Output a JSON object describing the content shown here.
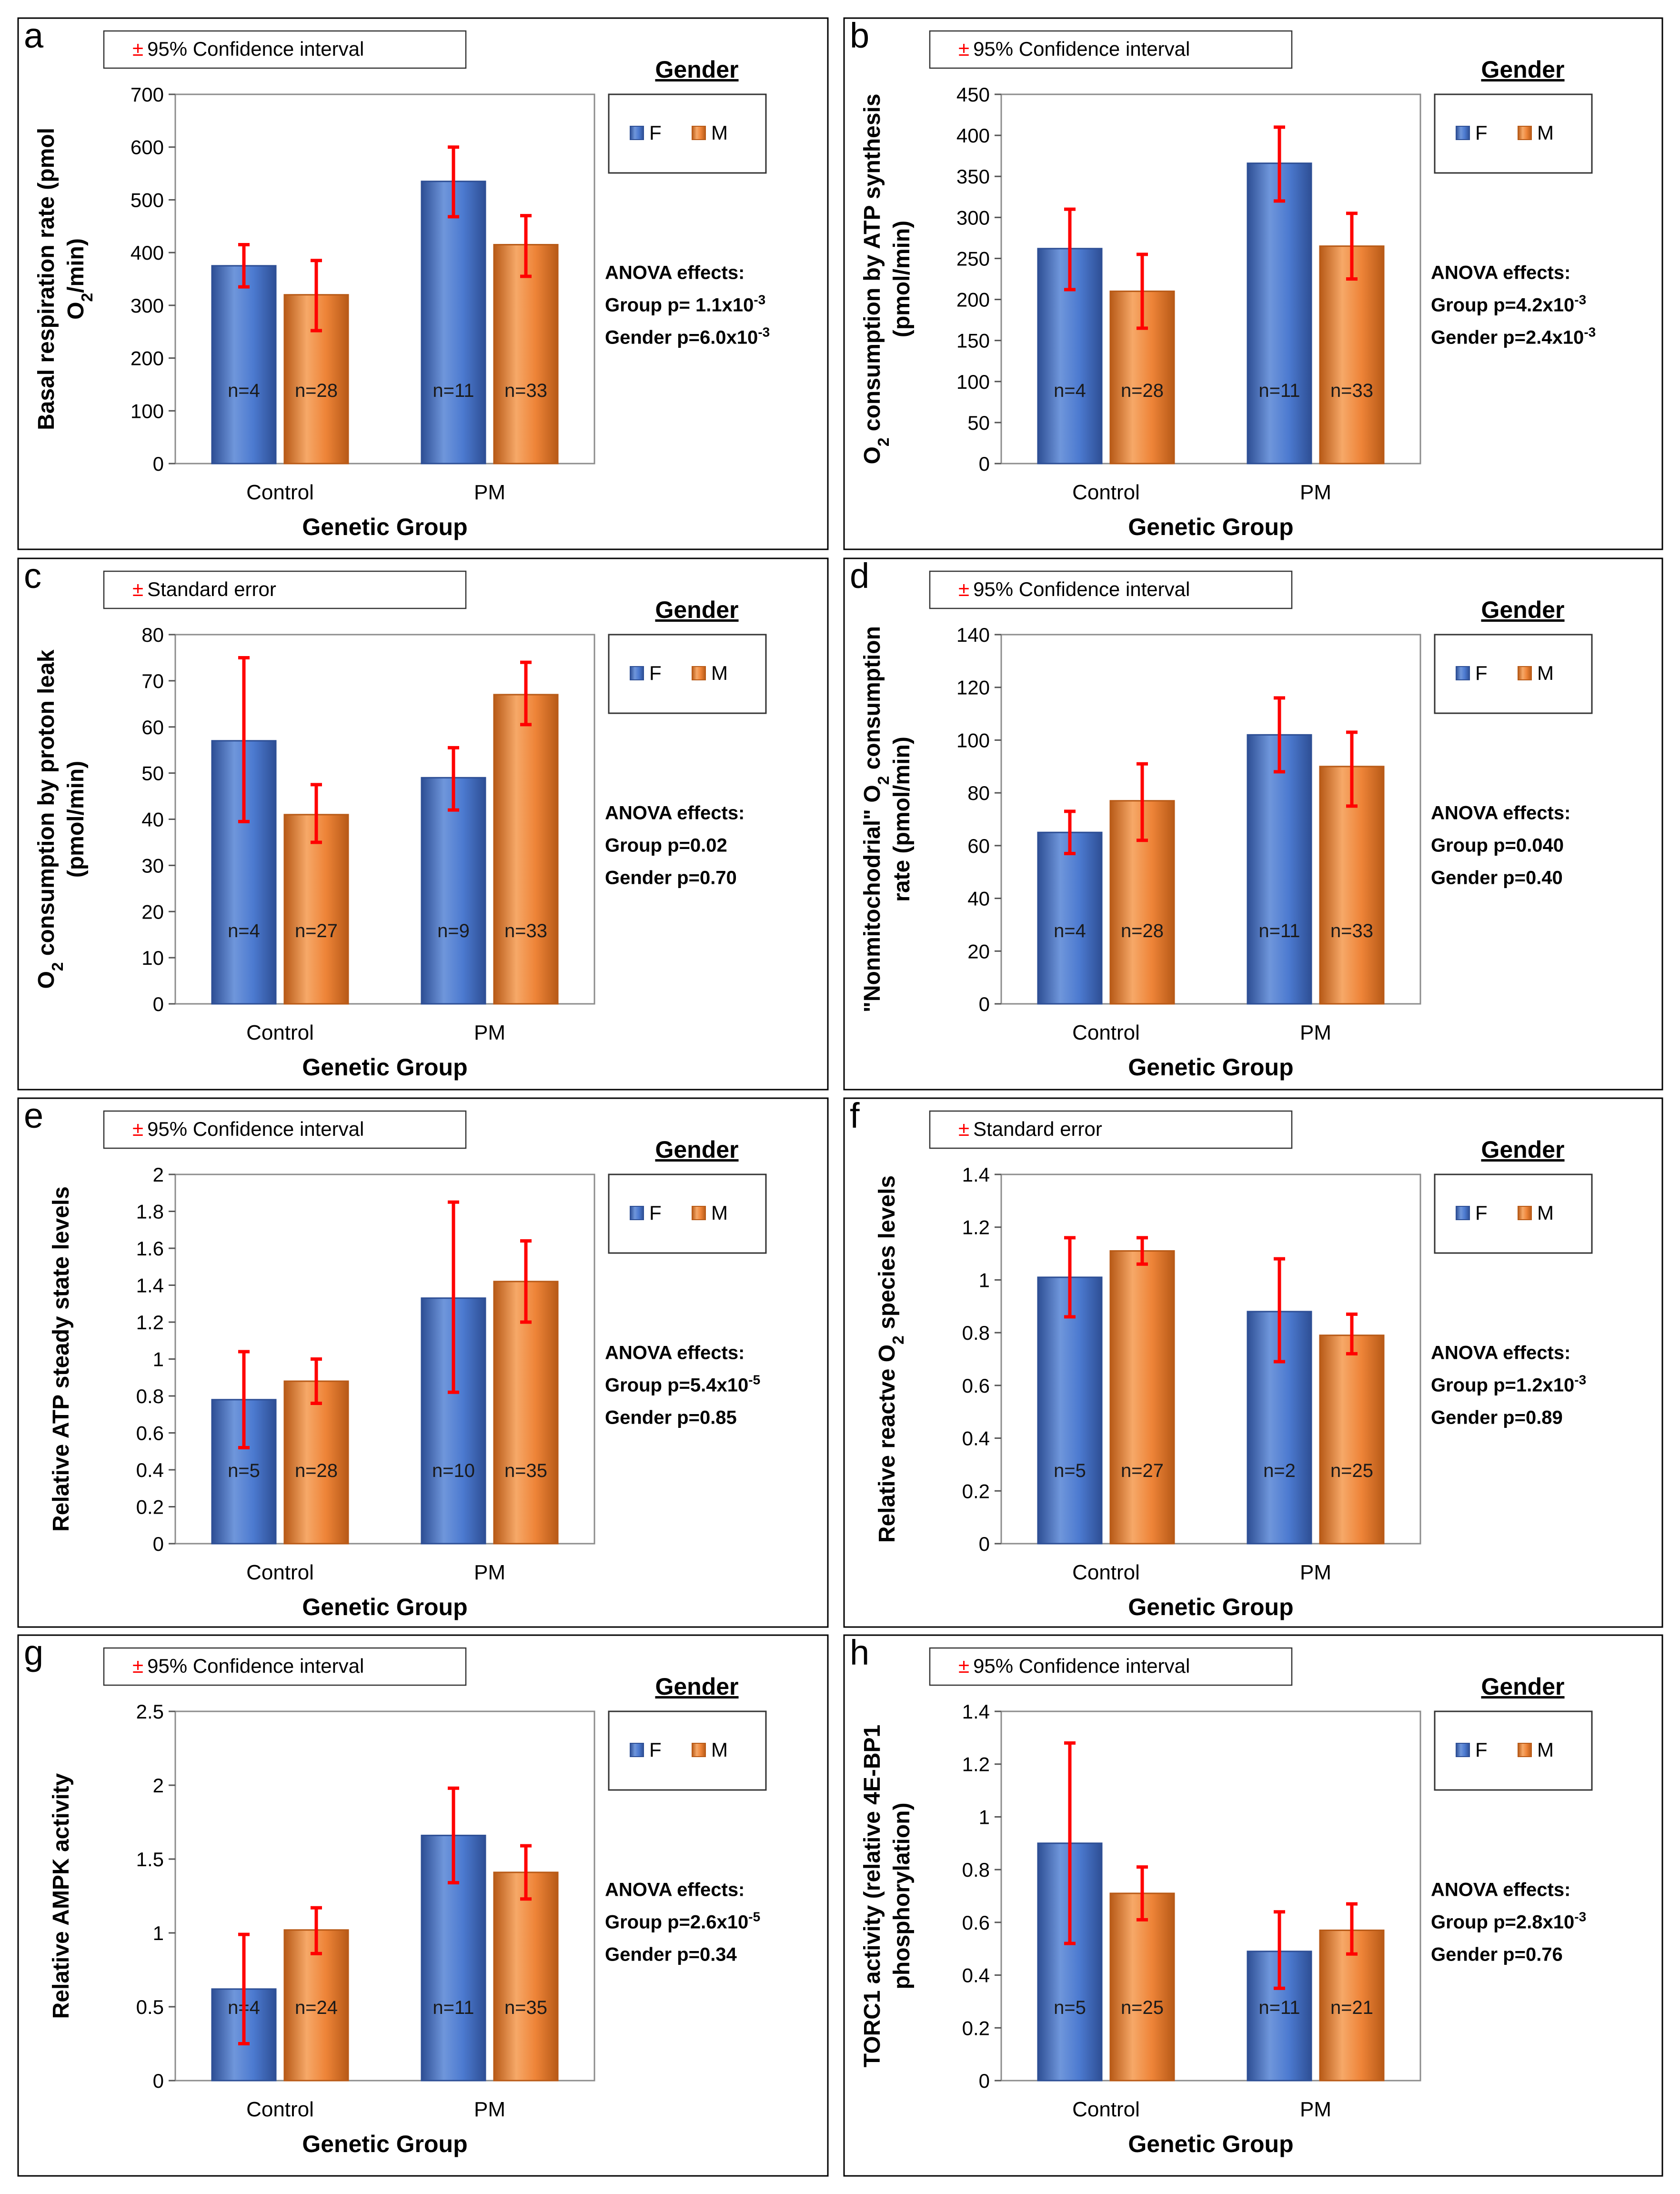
{
  "colors": {
    "female": "#4472C4",
    "female_light": "#7EA1E0",
    "female_dark": "#2E4F95",
    "male": "#ED7D31",
    "male_light": "#F7B27A",
    "male_dark": "#B85A17",
    "error_bar": "#FF0000",
    "pm_symbol": "#FF0000",
    "frame": "#000000",
    "plot_border": "#8C8C8C"
  },
  "legend_labels": {
    "title": "Gender",
    "female": "F",
    "male": "M"
  },
  "anova_title": "ANOVA effects:",
  "chart_data": [
    {
      "panel": "a",
      "type": "bar",
      "ci_label": "95% Confidence interval",
      "pm_symbol": "±",
      "ylabel_lines": [
        "Basal respiration rate (pmol",
        "O2/min)"
      ],
      "xlabel": "Genetic Group",
      "categories": [
        "Control",
        "PM"
      ],
      "ylim": [
        0,
        700
      ],
      "yticks": [
        0,
        100,
        200,
        300,
        400,
        500,
        600,
        700
      ],
      "series": [
        {
          "name": "F",
          "values": [
            375,
            535
          ],
          "err_low": [
            335,
            468
          ],
          "err_high": [
            415,
            600
          ],
          "n_labels": [
            "n=4",
            "n=11"
          ]
        },
        {
          "name": "M",
          "values": [
            320,
            415
          ],
          "err_low": [
            252,
            355
          ],
          "err_high": [
            385,
            470
          ],
          "n_labels": [
            "n=28",
            "n=33"
          ]
        }
      ],
      "anova": [
        "Group p= 1.1x10-3",
        "Gender p=6.0x10-3"
      ]
    },
    {
      "panel": "b",
      "type": "bar",
      "ci_label": "95% Confidence interval",
      "pm_symbol": "±",
      "ylabel_lines": [
        "O2 consumption by ATP synthesis",
        "(pmol/min)"
      ],
      "xlabel": "Genetic Group",
      "categories": [
        "Control",
        "PM"
      ],
      "ylim": [
        0,
        450
      ],
      "yticks": [
        0,
        50,
        100,
        150,
        200,
        250,
        300,
        350,
        400,
        450
      ],
      "series": [
        {
          "name": "F",
          "values": [
            262,
            366
          ],
          "err_low": [
            212,
            320
          ],
          "err_high": [
            310,
            410
          ],
          "n_labels": [
            "n=4",
            "n=11"
          ]
        },
        {
          "name": "M",
          "values": [
            210,
            265
          ],
          "err_low": [
            165,
            225
          ],
          "err_high": [
            255,
            305
          ],
          "n_labels": [
            "n=28",
            "n=33"
          ]
        }
      ],
      "anova": [
        "Group p=4.2x10-3",
        "Gender p=2.4x10-3"
      ]
    },
    {
      "panel": "c",
      "type": "bar",
      "ci_label": "Standard error",
      "pm_symbol": "±",
      "ylabel_lines": [
        "O2 consumption by proton leak",
        "(pmol/min)"
      ],
      "xlabel": "Genetic Group",
      "categories": [
        "Control",
        "PM"
      ],
      "ylim": [
        0,
        80
      ],
      "yticks": [
        0,
        10,
        20,
        30,
        40,
        50,
        60,
        70,
        80
      ],
      "series": [
        {
          "name": "F",
          "values": [
            57,
            49
          ],
          "err_low": [
            39.5,
            42
          ],
          "err_high": [
            75,
            55.5
          ],
          "n_labels": [
            "n=4",
            "n=9"
          ]
        },
        {
          "name": "M",
          "values": [
            41,
            67
          ],
          "err_low": [
            35,
            60.5
          ],
          "err_high": [
            47.5,
            74
          ],
          "n_labels": [
            "n=27",
            "n=33"
          ]
        }
      ],
      "anova": [
        "Group p=0.02",
        "Gender p=0.70"
      ]
    },
    {
      "panel": "d",
      "type": "bar",
      "ci_label": "95% Confidence interval",
      "pm_symbol": "±",
      "ylabel_lines": [
        "\"Nonmitochodrial\" O2 consumption",
        "rate (pmol/min)"
      ],
      "xlabel": "Genetic Group",
      "categories": [
        "Control",
        "PM"
      ],
      "ylim": [
        0,
        140
      ],
      "yticks": [
        0,
        20,
        40,
        60,
        80,
        100,
        120,
        140
      ],
      "series": [
        {
          "name": "F",
          "values": [
            65,
            102
          ],
          "err_low": [
            57,
            88
          ],
          "err_high": [
            73,
            116
          ],
          "n_labels": [
            "n=4",
            "n=11"
          ]
        },
        {
          "name": "M",
          "values": [
            77,
            90
          ],
          "err_low": [
            62,
            75
          ],
          "err_high": [
            91,
            103
          ],
          "n_labels": [
            "n=28",
            "n=33"
          ]
        }
      ],
      "anova": [
        "Group p=0.040",
        "Gender p=0.40"
      ]
    },
    {
      "panel": "e",
      "type": "bar",
      "ci_label": "95% Confidence interval",
      "pm_symbol": "±",
      "ylabel_lines": [
        "Relative ATP steady state levels"
      ],
      "xlabel": "Genetic Group",
      "categories": [
        "Control",
        "PM"
      ],
      "ylim": [
        0,
        2
      ],
      "yticks": [
        "0",
        "0.2",
        "0.4",
        "0.6",
        "0.8",
        "1",
        "1.2",
        "1.4",
        "1.6",
        "1.8",
        "2"
      ],
      "series": [
        {
          "name": "F",
          "values": [
            0.78,
            1.33
          ],
          "err_low": [
            0.52,
            0.82
          ],
          "err_high": [
            1.04,
            1.85
          ],
          "n_labels": [
            "n=5",
            "n=10"
          ]
        },
        {
          "name": "M",
          "values": [
            0.88,
            1.42
          ],
          "err_low": [
            0.76,
            1.2
          ],
          "err_high": [
            1.0,
            1.64
          ],
          "n_labels": [
            "n=28",
            "n=35"
          ]
        }
      ],
      "anova": [
        "Group p=5.4x10-5",
        "Gender p=0.85"
      ]
    },
    {
      "panel": "f",
      "type": "bar",
      "ci_label": "Standard error",
      "pm_symbol": "±",
      "ylabel_lines": [
        "Relative reactve O2 species levels"
      ],
      "xlabel": "Genetic Group",
      "categories": [
        "Control",
        "PM"
      ],
      "ylim": [
        0,
        1.4
      ],
      "yticks": [
        "0",
        "0.2",
        "0.4",
        "0.6",
        "0.8",
        "1",
        "1.2",
        "1.4"
      ],
      "series": [
        {
          "name": "F",
          "values": [
            1.01,
            0.88
          ],
          "err_low": [
            0.86,
            0.69
          ],
          "err_high": [
            1.16,
            1.08
          ],
          "n_labels": [
            "n=5",
            "n=2"
          ]
        },
        {
          "name": "M",
          "values": [
            1.11,
            0.79
          ],
          "err_low": [
            1.06,
            0.72
          ],
          "err_high": [
            1.16,
            0.87
          ],
          "n_labels": [
            "n=27",
            "n=25"
          ]
        }
      ],
      "anova": [
        "Group p=1.2x10-3",
        "Gender p=0.89"
      ]
    },
    {
      "panel": "g",
      "type": "bar",
      "ci_label": "95% Confidence interval",
      "pm_symbol": "±",
      "ylabel_lines": [
        "Relative AMPK activity"
      ],
      "xlabel": "Genetic Group",
      "categories": [
        "Control",
        "PM"
      ],
      "ylim": [
        0,
        2.5
      ],
      "yticks": [
        "0",
        "0.5",
        "1",
        "1.5",
        "2",
        "2.5"
      ],
      "series": [
        {
          "name": "F",
          "values": [
            0.62,
            1.66
          ],
          "err_low": [
            0.25,
            1.34
          ],
          "err_high": [
            0.99,
            1.98
          ],
          "n_labels": [
            "n=4",
            "n=11"
          ]
        },
        {
          "name": "M",
          "values": [
            1.02,
            1.41
          ],
          "err_low": [
            0.86,
            1.23
          ],
          "err_high": [
            1.17,
            1.59
          ],
          "n_labels": [
            "n=24",
            "n=35"
          ]
        }
      ],
      "anova": [
        "Group p=2.6x10-5",
        "Gender p=0.34"
      ]
    },
    {
      "panel": "h",
      "type": "bar",
      "ci_label": "95% Confidence interval",
      "pm_symbol": "±",
      "ylabel_lines": [
        "TORC1 activity (relative 4E-BP1",
        "phosphorylation)"
      ],
      "xlabel": "Genetic Group",
      "categories": [
        "Control",
        "PM"
      ],
      "ylim": [
        0,
        1.4
      ],
      "yticks": [
        "0",
        "0.2",
        "0.4",
        "0.6",
        "0.8",
        "1",
        "1.2",
        "1.4"
      ],
      "series": [
        {
          "name": "F",
          "values": [
            0.9,
            0.49
          ],
          "err_low": [
            0.52,
            0.35
          ],
          "err_high": [
            1.28,
            0.64
          ],
          "n_labels": [
            "n=5",
            "n=11"
          ]
        },
        {
          "name": "M",
          "values": [
            0.71,
            0.57
          ],
          "err_low": [
            0.61,
            0.48
          ],
          "err_high": [
            0.81,
            0.67
          ],
          "n_labels": [
            "n=25",
            "n=21"
          ]
        }
      ],
      "anova": [
        "Group p=2.8x10-3",
        "Gender p=0.76"
      ]
    }
  ]
}
